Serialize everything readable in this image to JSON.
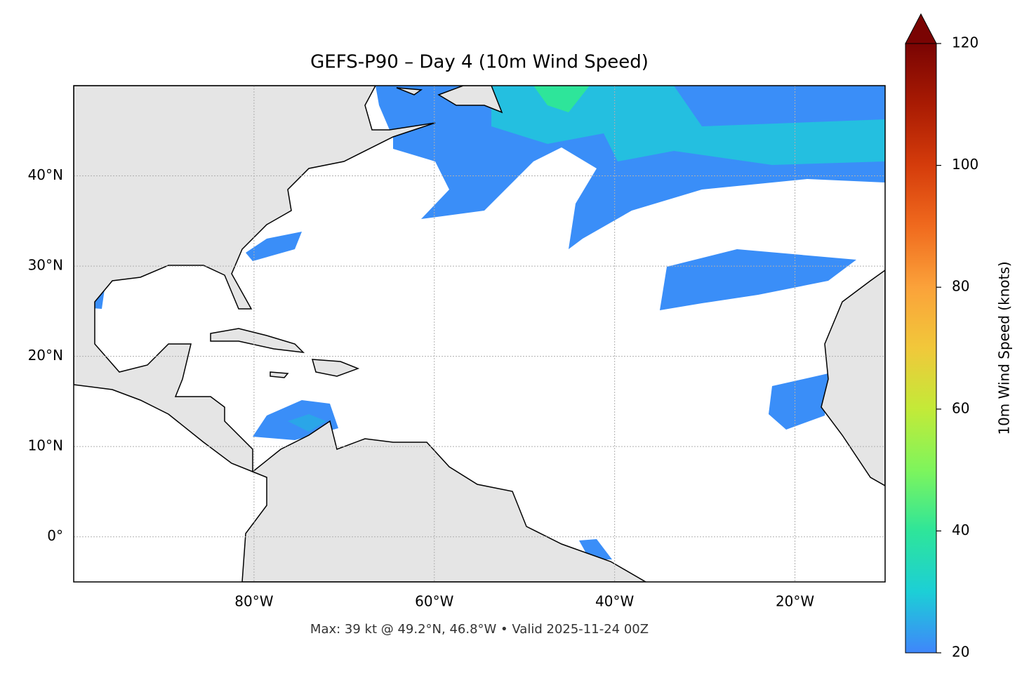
{
  "chart_data": {
    "type": "map",
    "title": "GEFS-P90 – Day 4 (10m Wind Speed)",
    "annotation": "Max: 39 kt @ 49.2°N, 46.8°W • Valid 2025-11-24 00Z",
    "xlim": [
      -100,
      -10
    ],
    "xticks": [
      {
        "value": -80,
        "label": "80°W"
      },
      {
        "value": -60,
        "label": "60°W"
      },
      {
        "value": -40,
        "label": "40°W"
      },
      {
        "value": -20,
        "label": "20°W"
      }
    ],
    "ylim": [
      -5,
      50
    ],
    "yticks": [
      {
        "value": 0,
        "label": "0°"
      },
      {
        "value": 10,
        "label": "10°N"
      },
      {
        "value": 20,
        "label": "20°N"
      },
      {
        "value": 30,
        "label": "30°N"
      },
      {
        "value": 40,
        "label": "40°N"
      }
    ],
    "grid": true,
    "colorbar": {
      "label": "10m Wind Speed (knots)",
      "lim": [
        20,
        120
      ],
      "ticks": [
        20,
        40,
        60,
        80,
        100,
        120
      ]
    }
  }
}
